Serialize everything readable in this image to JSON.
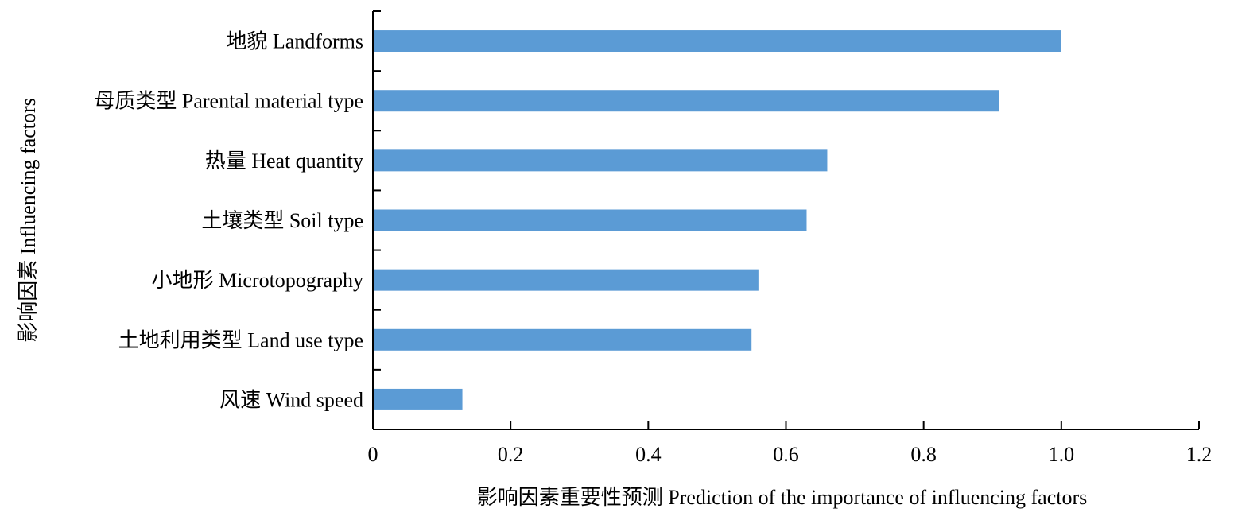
{
  "colors": {
    "bar": "#5b9bd5",
    "axis": "#000000",
    "background": "#ffffff"
  },
  "chart_data": {
    "type": "bar",
    "orientation": "horizontal",
    "categories": [
      "地貌 Landforms",
      "母质类型 Parental material type",
      "热量 Heat quantity",
      "土壤类型 Soil type",
      "小地形 Microtopography",
      "土地利用类型 Land use type",
      "风速 Wind speed"
    ],
    "values": [
      1.0,
      0.91,
      0.66,
      0.63,
      0.56,
      0.55,
      0.13
    ],
    "xlabel": "影响因素重要性预测 Prediction of the importance of influencing factors",
    "ylabel": "影响因素 Influencing factors",
    "xlim": [
      0,
      1.2
    ],
    "xticks": [
      "0",
      "0.2",
      "0.4",
      "0.6",
      "0.8",
      "1.0",
      "1.2"
    ],
    "grid": false,
    "legend": "none"
  }
}
